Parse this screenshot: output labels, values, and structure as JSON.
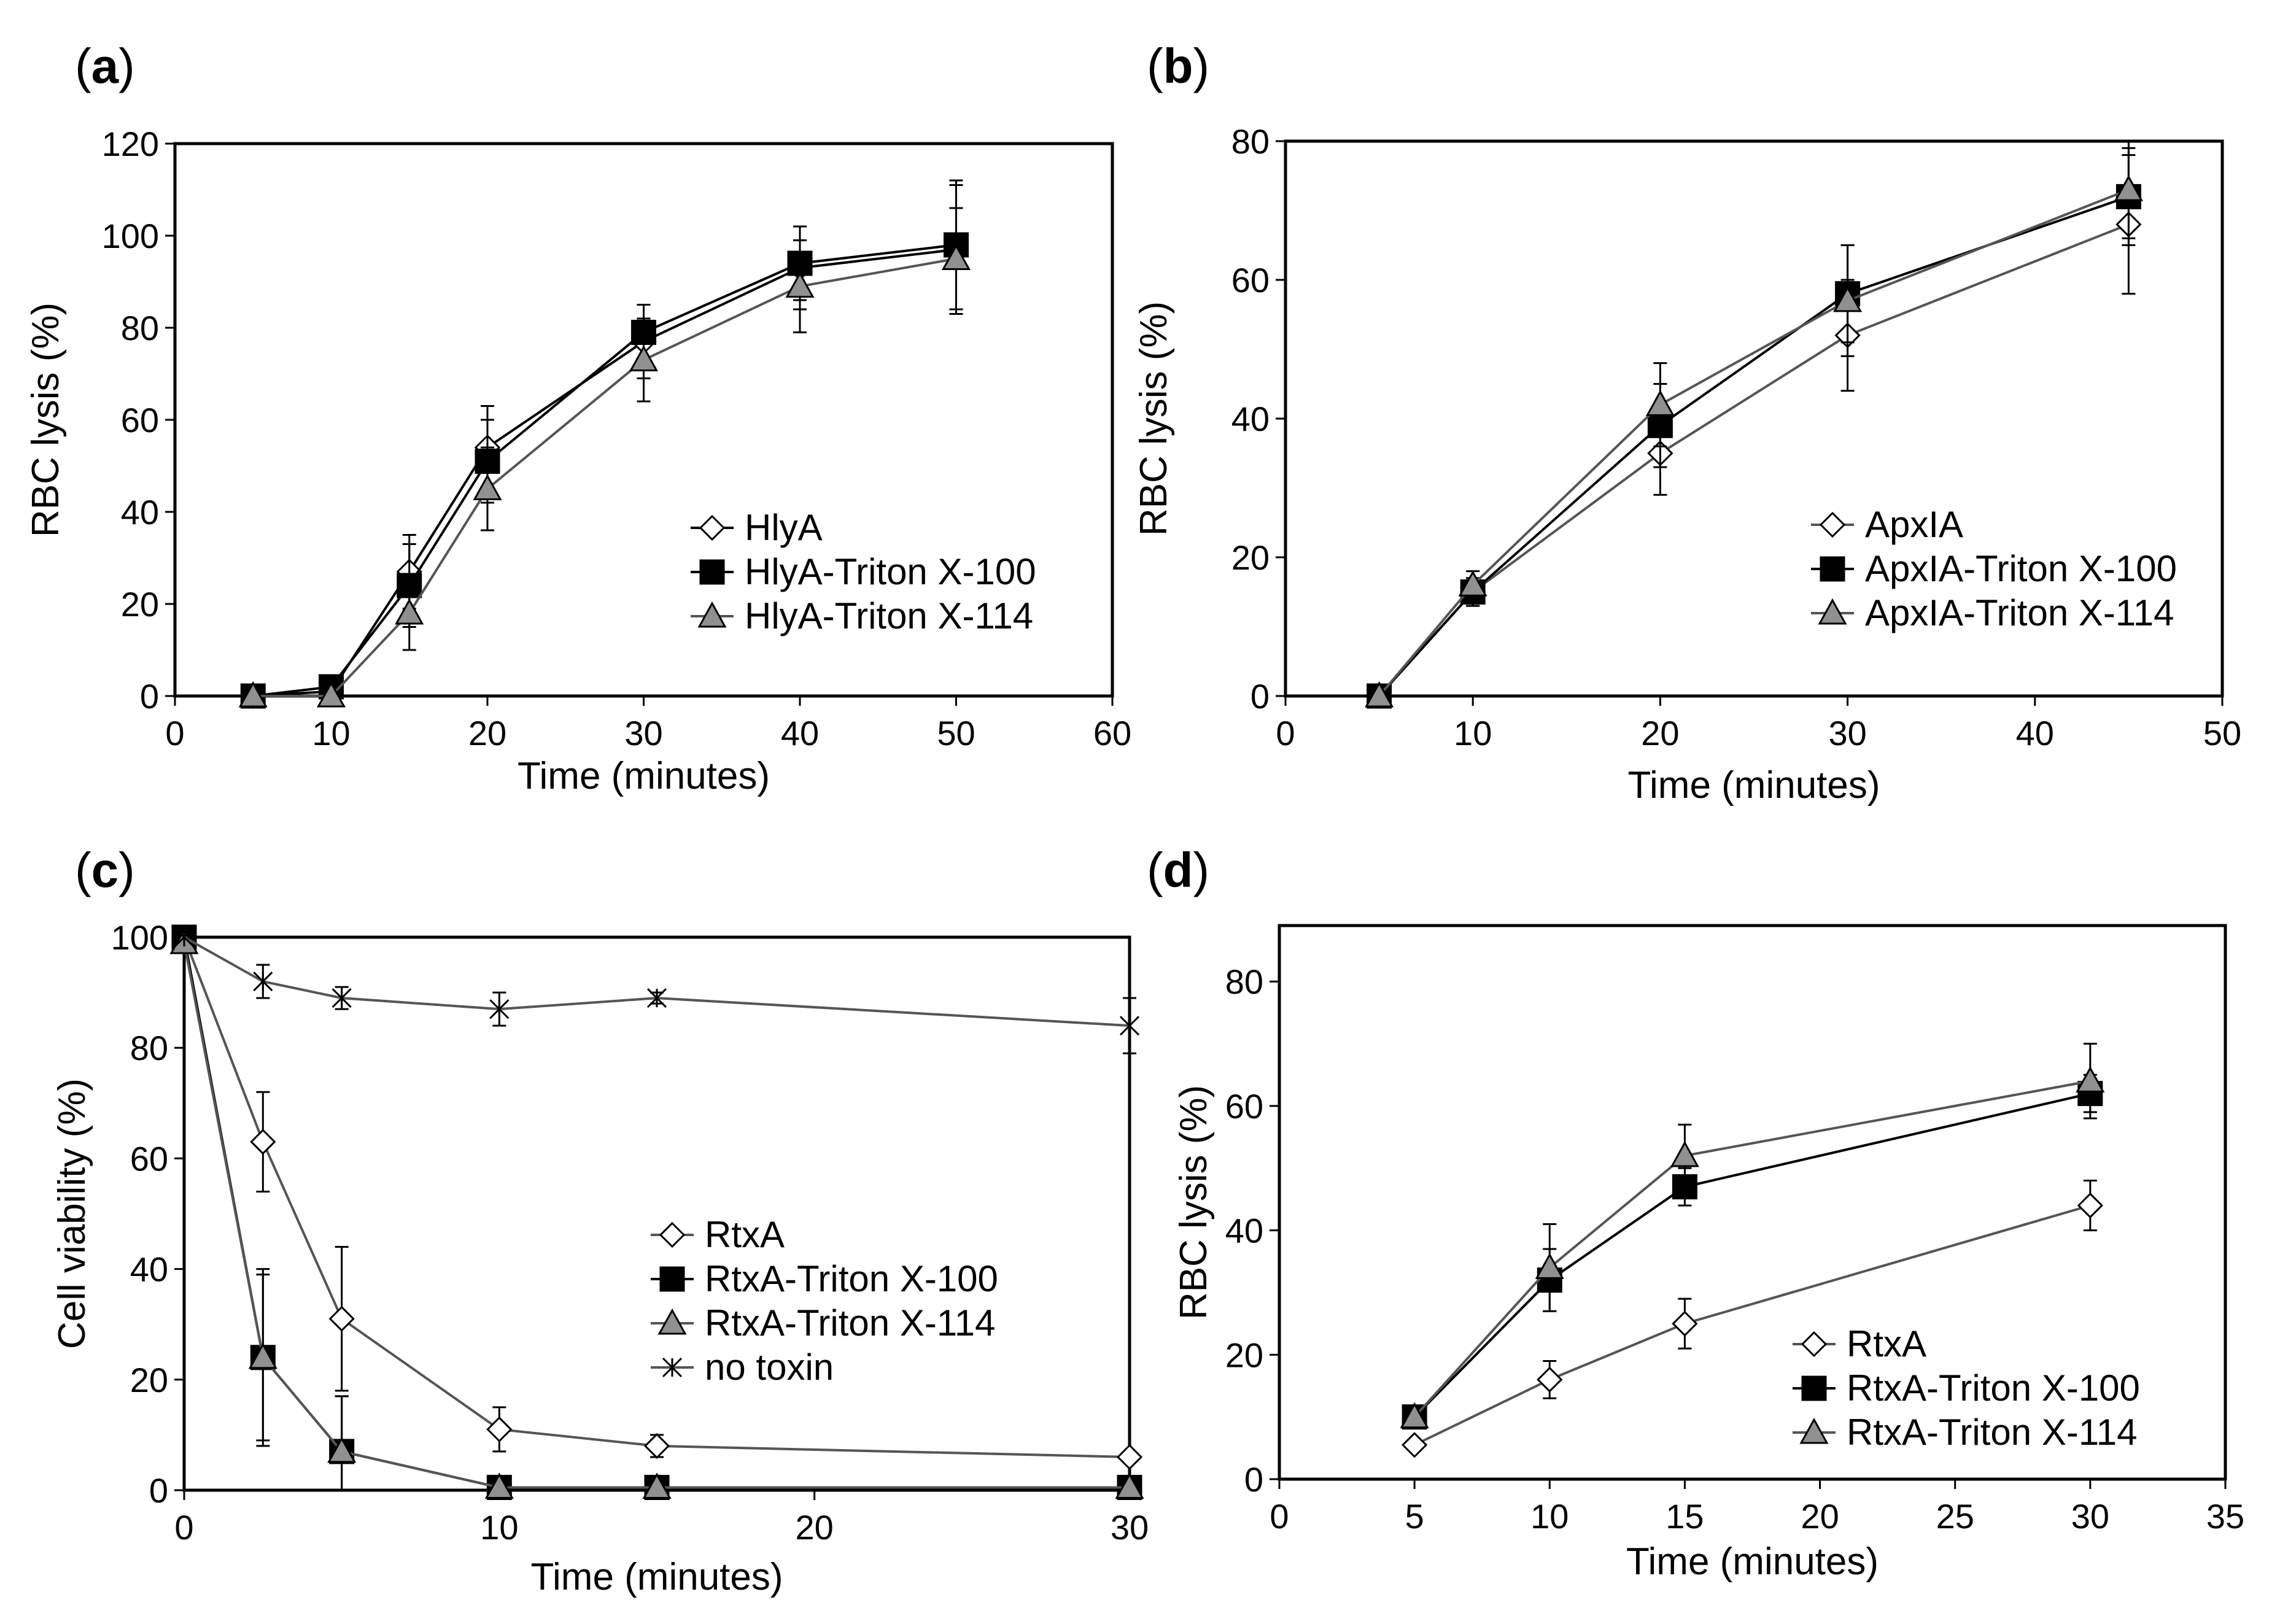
{
  "chart_data": [
    {
      "panel_label": "a",
      "type": "line",
      "xlabel": "Time (minutes)",
      "ylabel": "RBC lysis (%)",
      "xlim": [
        0,
        60
      ],
      "ylim": [
        0,
        120
      ],
      "xticks": [
        0,
        10,
        20,
        30,
        40,
        50,
        60
      ],
      "yticks": [
        0,
        20,
        40,
        60,
        80,
        100,
        120
      ],
      "grid": false,
      "legend_position": "bottom-right",
      "series": [
        {
          "name": "HlyA",
          "marker": "diamond",
          "fill": "#ffffff",
          "line": "#000000",
          "x": [
            5,
            10,
            15,
            20,
            30,
            40,
            50
          ],
          "y": [
            0,
            1,
            27,
            54,
            77,
            93,
            97
          ],
          "err": [
            0,
            0,
            8,
            9,
            8,
            9,
            14
          ]
        },
        {
          "name": "HlyA-Triton X-100",
          "marker": "square",
          "fill": "#000000",
          "line": "#000000",
          "x": [
            5,
            10,
            15,
            20,
            30,
            40,
            50
          ],
          "y": [
            0,
            2,
            24,
            51,
            79,
            94,
            98
          ],
          "err": [
            0,
            0,
            9,
            9,
            6,
            8,
            14
          ]
        },
        {
          "name": "HlyA-Triton X-114",
          "marker": "triangle",
          "fill": "#909090",
          "line": "#555555",
          "x": [
            5,
            10,
            15,
            20,
            30,
            40,
            50
          ],
          "y": [
            0,
            0,
            18,
            45,
            73,
            89,
            95
          ],
          "err": [
            0,
            0,
            8,
            9,
            9,
            10,
            11
          ]
        }
      ]
    },
    {
      "panel_label": "b",
      "type": "line",
      "xlabel": "Time (minutes)",
      "ylabel": "RBC lysis (%)",
      "xlim": [
        0,
        50
      ],
      "ylim": [
        0,
        80
      ],
      "xticks": [
        0,
        10,
        20,
        30,
        40,
        50
      ],
      "yticks": [
        0,
        20,
        40,
        60,
        80
      ],
      "grid": false,
      "legend_position": "bottom-right",
      "series": [
        {
          "name": "ApxIA",
          "marker": "diamond",
          "fill": "#ffffff",
          "line": "#555555",
          "x": [
            5,
            10,
            20,
            30,
            45
          ],
          "y": [
            0,
            15,
            35,
            52,
            68
          ],
          "err": [
            0,
            2,
            6,
            8,
            10
          ]
        },
        {
          "name": "ApxIA-Triton X-100",
          "marker": "square",
          "fill": "#000000",
          "line": "#000000",
          "x": [
            5,
            10,
            20,
            30,
            45
          ],
          "y": [
            0,
            15,
            39,
            58,
            72
          ],
          "err": [
            0,
            2,
            6,
            7,
            7
          ]
        },
        {
          "name": "ApxIA-Triton X-114",
          "marker": "triangle",
          "fill": "#909090",
          "line": "#555555",
          "x": [
            5,
            10,
            20,
            30,
            45
          ],
          "y": [
            0,
            16,
            42,
            57,
            73
          ],
          "err": [
            0,
            2,
            6,
            8,
            7
          ]
        }
      ]
    },
    {
      "panel_label": "c",
      "type": "line",
      "xlabel": "Time (minutes)",
      "ylabel": "Cell viability (%)",
      "xlim": [
        0,
        30
      ],
      "ylim": [
        0,
        100
      ],
      "xticks": [
        0,
        10,
        20,
        30
      ],
      "yticks": [
        0,
        20,
        40,
        60,
        80,
        100
      ],
      "grid": false,
      "legend_position": "bottom-right",
      "series": [
        {
          "name": "RtxA",
          "marker": "diamond",
          "fill": "#ffffff",
          "line": "#555555",
          "x": [
            0,
            2.5,
            5,
            10,
            15,
            30
          ],
          "y": [
            100,
            63,
            31,
            11,
            8,
            6
          ],
          "err": [
            0,
            9,
            13,
            4,
            2,
            1
          ]
        },
        {
          "name": "RtxA-Triton X-100",
          "marker": "square",
          "fill": "#000000",
          "line": "#000000",
          "x": [
            0,
            2.5,
            5,
            10,
            15,
            30
          ],
          "y": [
            100,
            24,
            7,
            0.5,
            0.5,
            0.5
          ],
          "err": [
            0,
            16,
            10,
            0,
            0,
            0
          ]
        },
        {
          "name": "RtxA-Triton X-114",
          "marker": "triangle",
          "fill": "#909090",
          "line": "#555555",
          "x": [
            0,
            2.5,
            5,
            10,
            15,
            30
          ],
          "y": [
            99,
            24,
            7,
            0.5,
            0.5,
            0.5
          ],
          "err": [
            0,
            15,
            10,
            0,
            0,
            0
          ]
        },
        {
          "name": "no toxin",
          "marker": "star",
          "fill": "#000000",
          "line": "#555555",
          "x": [
            0,
            2.5,
            5,
            10,
            15,
            30
          ],
          "y": [
            100,
            92,
            89,
            87,
            89,
            84
          ],
          "err": [
            0,
            3,
            2,
            3,
            1,
            5
          ]
        }
      ]
    },
    {
      "panel_label": "d",
      "type": "line",
      "xlabel": "Time (minutes)",
      "ylabel": "RBC lysis (%)",
      "xlim": [
        0,
        35
      ],
      "ylim": [
        0,
        89
      ],
      "xticks": [
        0,
        5,
        10,
        15,
        20,
        25,
        30,
        35
      ],
      "yticks": [
        0,
        20,
        40,
        60,
        80
      ],
      "grid": false,
      "legend_position": "bottom-right",
      "series": [
        {
          "name": "RtxA",
          "marker": "diamond",
          "fill": "#ffffff",
          "line": "#555555",
          "x": [
            5,
            10,
            15,
            30
          ],
          "y": [
            5.5,
            16,
            25,
            44
          ],
          "err": [
            0,
            3,
            4,
            4
          ]
        },
        {
          "name": "RtxA-Triton X-100",
          "marker": "square",
          "fill": "#000000",
          "line": "#000000",
          "x": [
            5,
            10,
            15,
            30
          ],
          "y": [
            10,
            32,
            47,
            62
          ],
          "err": [
            0,
            5,
            3,
            3
          ]
        },
        {
          "name": "RtxA-Triton X-114",
          "marker": "triangle",
          "fill": "#909090",
          "line": "#555555",
          "x": [
            5,
            10,
            15,
            30
          ],
          "y": [
            10,
            34,
            52,
            64
          ],
          "err": [
            0,
            7,
            5,
            6
          ]
        }
      ]
    }
  ]
}
